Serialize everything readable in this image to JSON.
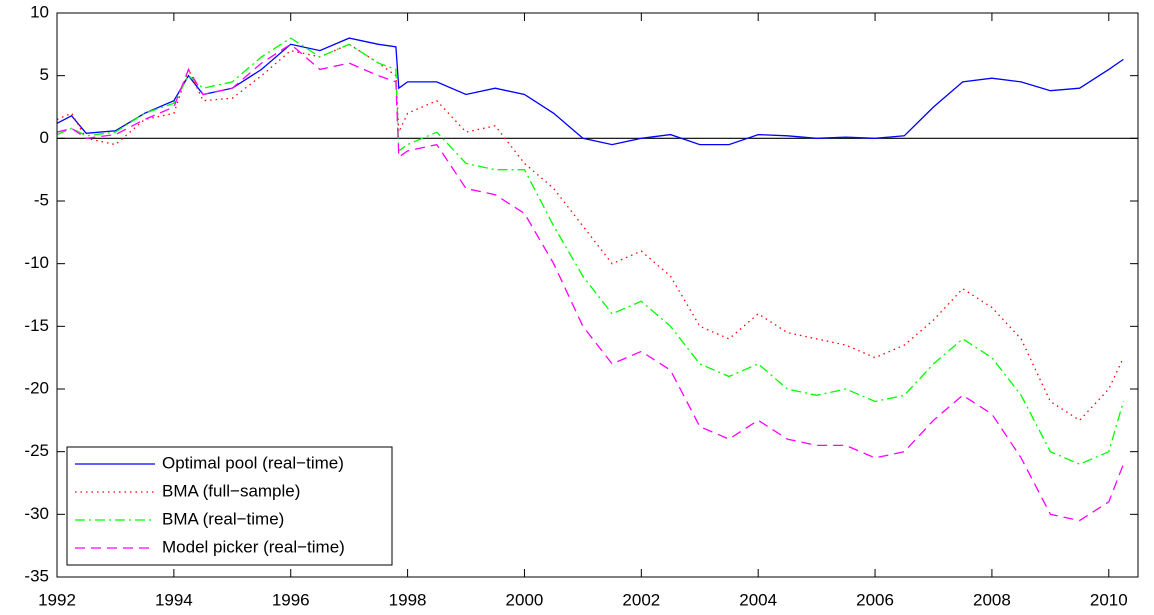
{
  "chart_data": {
    "type": "line",
    "x": [
      1992,
      1992.25,
      1992.5,
      1993,
      1993.5,
      1994,
      1994.25,
      1994.5,
      1995,
      1995.5,
      1996,
      1996.5,
      1997,
      1997.5,
      1997.8,
      1997.85,
      1998,
      1998.5,
      1999,
      1999.5,
      2000,
      2000.5,
      2001,
      2001.5,
      2002,
      2002.5,
      2003,
      2003.5,
      2004,
      2004.5,
      2005,
      2005.5,
      2006,
      2006.5,
      2007,
      2007.5,
      2008,
      2008.5,
      2009,
      2009.5,
      2010,
      2010.25
    ],
    "series": [
      {
        "name": "Optimal pool (real−time)",
        "color": "#0000ff",
        "style": "solid",
        "values": [
          1.2,
          1.8,
          0.4,
          0.6,
          2.0,
          3.0,
          5.0,
          3.5,
          4.0,
          5.5,
          7.5,
          7.0,
          8.0,
          7.5,
          7.3,
          4.0,
          4.5,
          4.5,
          3.5,
          4.0,
          3.5,
          2.0,
          0.0,
          -0.5,
          0.0,
          0.3,
          -0.5,
          -0.5,
          0.3,
          0.2,
          0.0,
          0.1,
          0.0,
          0.2,
          2.5,
          4.5,
          4.8,
          4.5,
          3.8,
          4.0,
          5.5,
          6.3
        ]
      },
      {
        "name": "BMA (full−sample)",
        "color": "#ff0000",
        "style": "dotted",
        "values": [
          1.5,
          2.0,
          0.0,
          -0.5,
          1.5,
          2.0,
          5.5,
          3.0,
          3.2,
          5.0,
          7.0,
          6.5,
          7.5,
          6.0,
          5.0,
          0.5,
          2.0,
          3.0,
          0.5,
          1.0,
          -2.0,
          -4.0,
          -7.0,
          -10.0,
          -9.0,
          -11.0,
          -15.0,
          -16.0,
          -14.0,
          -15.5,
          -16.0,
          -16.5,
          -17.5,
          -16.5,
          -14.5,
          -12.0,
          -13.5,
          -16.0,
          -21.0,
          -22.5,
          -20.0,
          -17.5
        ]
      },
      {
        "name": "BMA (real−time)",
        "color": "#00ff00",
        "style": "dashdot",
        "values": [
          0.3,
          0.8,
          0.2,
          0.5,
          2.0,
          2.8,
          5.0,
          4.0,
          4.5,
          6.5,
          8.0,
          6.5,
          7.5,
          6.0,
          5.5,
          -1.0,
          -0.5,
          0.5,
          -2.0,
          -2.5,
          -2.5,
          -7.0,
          -11.0,
          -14.0,
          -13.0,
          -15.0,
          -18.0,
          -19.0,
          -18.0,
          -20.0,
          -20.5,
          -20.0,
          -21.0,
          -20.5,
          -18.0,
          -16.0,
          -17.5,
          -20.5,
          -25.0,
          -26.0,
          -25.0,
          -21.0
        ]
      },
      {
        "name": "Model picker (real−time)",
        "color": "#ff00ff",
        "style": "dashed",
        "values": [
          0.5,
          0.8,
          0.0,
          0.3,
          1.5,
          2.5,
          5.5,
          3.5,
          4.0,
          6.0,
          7.5,
          5.5,
          6.0,
          5.0,
          4.5,
          -1.5,
          -1.0,
          -0.5,
          -4.0,
          -4.5,
          -6.0,
          -10.0,
          -15.0,
          -18.0,
          -17.0,
          -18.5,
          -23.0,
          -24.0,
          -22.5,
          -24.0,
          -24.5,
          -24.5,
          -25.5,
          -25.0,
          -22.5,
          -20.5,
          -22.0,
          -25.5,
          -30.0,
          -30.5,
          -29.0,
          -26.0
        ]
      }
    ],
    "xlim": [
      1992,
      2010.5
    ],
    "xticks": [
      1992,
      1994,
      1996,
      1998,
      2000,
      2002,
      2004,
      2006,
      2008,
      2010
    ],
    "ylim": [
      -35,
      10
    ],
    "yticks": [
      -35,
      -30,
      -25,
      -20,
      -15,
      -10,
      -5,
      0,
      5,
      10
    ],
    "reference_line": 0,
    "legend": "lower-left",
    "grid": false
  }
}
